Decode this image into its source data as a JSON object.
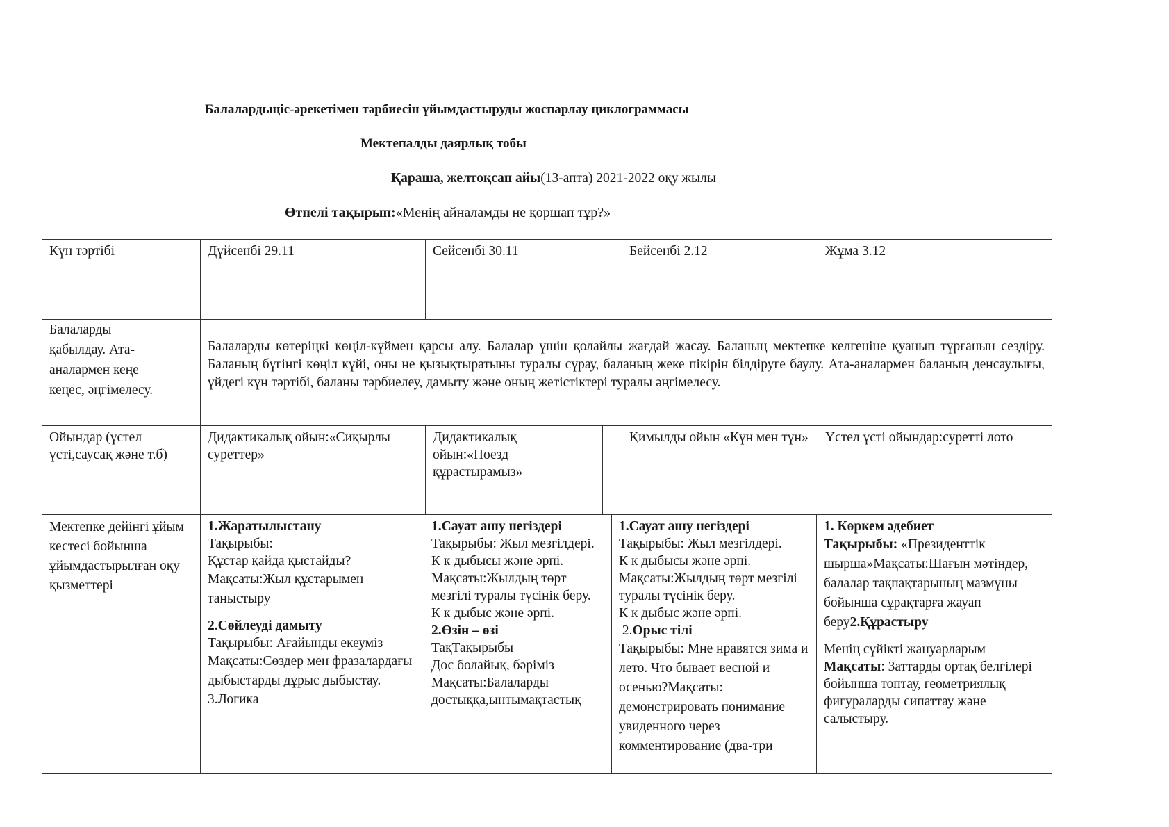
{
  "header": {
    "title": "Балалардыңіс-әрекетімен тәрбиесін ұйымдастыруды жоспарлау циклограммасы",
    "group": "Мектепалды даярлық   тобы",
    "period_bold": "Қараша, желтоқсан  айы",
    "period_rest": "(13-апта) 2021-2022 оқу жылы",
    "theme_label": "Өтпелі  тақырып:",
    "theme_value": "«Менің айналамды не қоршап тұр?»"
  },
  "table": {
    "columns": [
      "Күн тәртібі",
      "Дүйсенбі 29.11",
      "Сейсенбі 30.11",
      "Бейсенбі 2.12",
      "Жұма 3.12"
    ],
    "reception": {
      "label": "Балаларды қабылдау. Ата-аналармен  кеңе кеңес, әңгімелесу.",
      "label_lines": [
        "Балаларды",
        "қабылдау. Ата-",
        "аналармен  кеңе",
        "кеңес, әңгімелесу."
      ],
      "text": "Балаларды көтеріңкі көңіл-күймен қарсы алу. Балалар үшін қолайлы жағдай жасау. Баланың мектепке келгеніне қуанып тұрғанын сездіру. Баланың бүгінгі көңіл күйі, оны не қызықтыратыны туралы сұрау, баланың жеке пікірін білдіруге баулу. Ата-аналармен баланың денсаулығы, үйдегі күн тәртібі, баланы тәрбиелеу, дамыту және оның жетістіктері туралы әңгімелесу."
    },
    "games": {
      "label": "Ойындар (үстел үсті,саусақ және т.б)",
      "mon": "Дидактикалық ойын:«Сиқырлы суреттер»",
      "tue": "Дидактикалық ойын:«Поезд құрастырамыз»",
      "thu": "Қимылды ойын «Күн мен түн»",
      "fri": "Үстел үсті ойындар:суретті лото"
    },
    "lessons": {
      "label": "Мектепке дейінгі ұйым кестесі бойынша ұйымдастырылған оқу қызметтері",
      "mon": {
        "h1": "1.Жаратылыстану",
        "l1": "Тақырыбы:",
        "l2": "Құстар қайда қыстайды?",
        "l3": "Мақсаты:Жыл құстарымен таныстыру",
        "h2": "2.Сөйлеуді дамыту",
        "l4": "Тақырыбы: Ағайынды екеуміз",
        "l5": "Мақсаты:Сөздер мен фразалардағы  дыбыстарды дұрыс дыбыстау.",
        "l6": "3.Логика"
      },
      "tue": {
        "h1": "1.Сауат ашу негіздері",
        "l1": "Тақырыбы: Жыл мезгілдері.",
        "l2": "К к дыбысы және әрпі.",
        "l3": "Мақсаты:Жылдың төрт мезгілі туралы түсінік беру.",
        "l4": "К к дыбыс және әрпі.",
        "h2": "2.Өзін – өзі",
        "l5": "ТақТақырыбы",
        "l6": "Дос болайық, бәріміз",
        "l7": "Мақсаты:Балаларды",
        "l8": "достыққа,ынтымақтастық"
      },
      "thu": {
        "h1": "1.Сауат ашу негіздері",
        "l1": "Тақырыбы: Жыл мезгілдері.",
        "l2": "К к дыбысы және әрпі.",
        "l3": "Мақсаты:Жылдың төрт мезгілі туралы түсінік беру.",
        "l4": "К к дыбыс және әрпі.",
        "h2_num": "2.",
        "h2": "Орыс тілі",
        "l5": "Тақырыбы: Мне нравятся зима и лето. Что бывает весной и осенью?Мақсаты: демонстрировать понимание увиденного через комментирование (два-три"
      },
      "fri": {
        "h1": "1. Көркем әдебиет",
        "l1_bold": "Тақырыбы:",
        "l1": " «Президенттік шырша»Мақсаты:Шағын мәтіндер, балалар тақпақтарының мазмұны бойынша сұрақтарға жауап беру",
        "h2": "2.Құрастыру",
        "l2": "Менің сүйікті жануарларым",
        "l3_bold": "Мақсаты",
        "l3": ": Заттарды ортақ белгілері бойынша топтау, геометриялық фигураларды сипаттау және салыстыру."
      }
    }
  }
}
